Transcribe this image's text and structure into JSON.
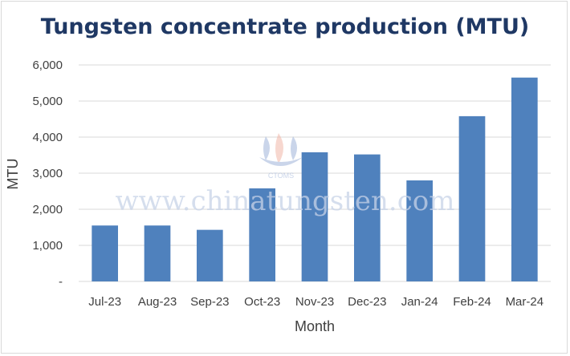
{
  "chart_data": {
    "type": "bar",
    "title": "Tungsten concentrate production (MTU)",
    "xlabel": "Month",
    "ylabel": "MTU",
    "categories": [
      "Jul-23",
      "Aug-23",
      "Sep-23",
      "Oct-23",
      "Nov-23",
      "Dec-23",
      "Jan-24",
      "Feb-24",
      "Mar-24"
    ],
    "values": [
      1550,
      1550,
      1430,
      2580,
      3580,
      3520,
      2800,
      4580,
      5650
    ],
    "ylim": [
      0,
      6000
    ],
    "yticks": [
      "-",
      "1,000",
      "2,000",
      "3,000",
      "4,000",
      "5,000",
      "6,000"
    ],
    "grid": true,
    "bar_color": "#4f81bd",
    "gridline_color": "#d9d9d9"
  },
  "watermark": {
    "text": "www.chinatungsten.com",
    "logo_text": "CTOMS"
  }
}
